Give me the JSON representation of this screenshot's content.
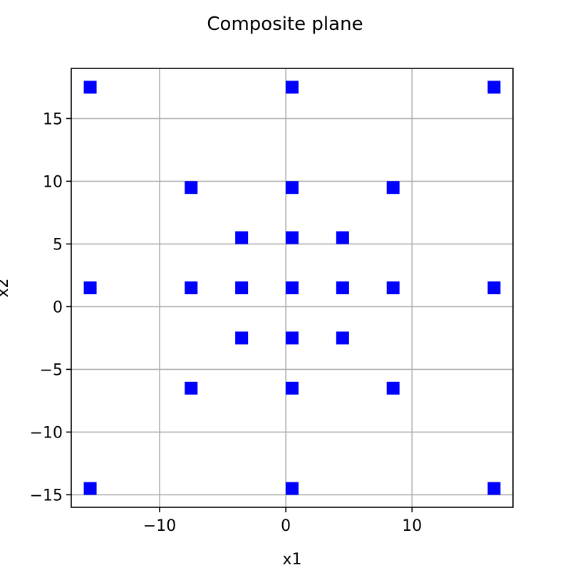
{
  "chart_data": {
    "type": "scatter",
    "title": "Composite plane",
    "xlabel": "x1",
    "ylabel": "x2",
    "xlim": [
      -17,
      18
    ],
    "ylim": [
      -16,
      19
    ],
    "xticks": [
      -10,
      0,
      10
    ],
    "xtick_labels": [
      "−10",
      "0",
      "10"
    ],
    "yticks": [
      -15,
      -10,
      -5,
      0,
      5,
      10,
      15
    ],
    "ytick_labels": [
      "−15",
      "−10",
      "−5",
      "0",
      "5",
      "10",
      "15"
    ],
    "grid": true,
    "marker": "square",
    "marker_color": "#0000ff",
    "points": [
      {
        "x": -15.5,
        "y": 17.5
      },
      {
        "x": 0.5,
        "y": 17.5
      },
      {
        "x": 16.5,
        "y": 17.5
      },
      {
        "x": -7.5,
        "y": 9.5
      },
      {
        "x": 0.5,
        "y": 9.5
      },
      {
        "x": 8.5,
        "y": 9.5
      },
      {
        "x": -3.5,
        "y": 5.5
      },
      {
        "x": 0.5,
        "y": 5.5
      },
      {
        "x": 4.5,
        "y": 5.5
      },
      {
        "x": -15.5,
        "y": 1.5
      },
      {
        "x": -7.5,
        "y": 1.5
      },
      {
        "x": -3.5,
        "y": 1.5
      },
      {
        "x": 0.5,
        "y": 1.5
      },
      {
        "x": 4.5,
        "y": 1.5
      },
      {
        "x": 8.5,
        "y": 1.5
      },
      {
        "x": 16.5,
        "y": 1.5
      },
      {
        "x": -3.5,
        "y": -2.5
      },
      {
        "x": 0.5,
        "y": -2.5
      },
      {
        "x": 4.5,
        "y": -2.5
      },
      {
        "x": -7.5,
        "y": -6.5
      },
      {
        "x": 0.5,
        "y": -6.5
      },
      {
        "x": 8.5,
        "y": -6.5
      },
      {
        "x": -15.5,
        "y": -14.5
      },
      {
        "x": 0.5,
        "y": -14.5
      },
      {
        "x": 16.5,
        "y": -14.5
      }
    ]
  }
}
